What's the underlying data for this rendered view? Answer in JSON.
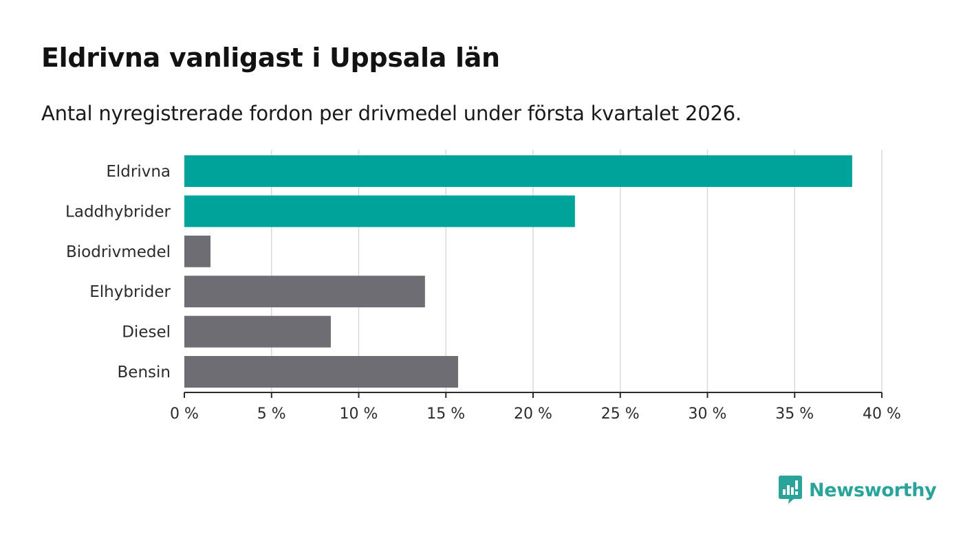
{
  "header": {
    "title": "Eldrivna vanligast i Uppsala län",
    "subtitle": "Antal nyregistrerade fordon per drivmedel under första kvartalet 2026."
  },
  "chart_data": {
    "type": "bar",
    "orientation": "horizontal",
    "title": "Eldrivna vanligast i Uppsala län",
    "subtitle": "Antal nyregistrerade fordon per drivmedel under första kvartalet 2026.",
    "categories": [
      "Eldrivna",
      "Laddhybrider",
      "Biodrivmedel",
      "Elhybrider",
      "Diesel",
      "Bensin"
    ],
    "values": [
      38.3,
      22.4,
      1.5,
      13.8,
      8.4,
      15.7
    ],
    "highlighted": [
      true,
      true,
      false,
      false,
      false,
      false
    ],
    "xlim": [
      0,
      40
    ],
    "xticks": [
      0,
      5,
      10,
      15,
      20,
      25,
      30,
      35,
      40
    ],
    "tick_labels": [
      "0 %",
      "5 %",
      "10 %",
      "15 %",
      "20 %",
      "25 %",
      "30 %",
      "35 %",
      "40 %"
    ],
    "xlabel": "",
    "ylabel": "",
    "grid": true,
    "colors": {
      "highlight": "#00a39a",
      "default": "#6e6d73",
      "grid": "#d9d9d9",
      "axis": "#2b2b2b"
    }
  },
  "brand": {
    "name": "Newsworthy",
    "color": "#2aa39a",
    "icon": "newsworthy-logo-icon"
  }
}
